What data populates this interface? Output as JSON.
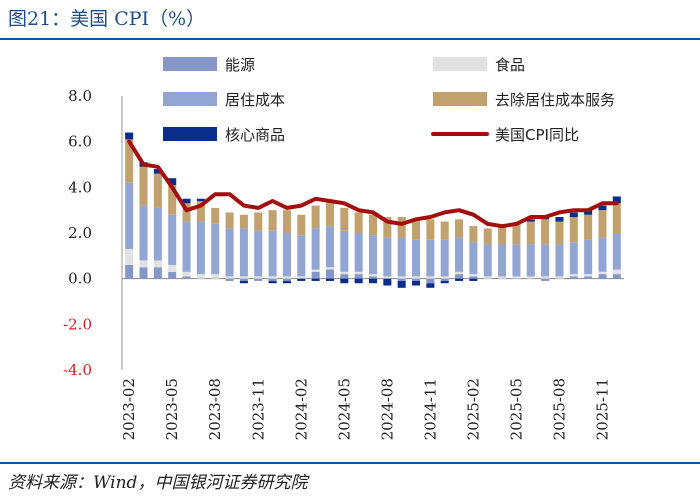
{
  "header": {
    "title": "图21：美国 CPI（%）"
  },
  "footer": {
    "source": "资料来源：Wind，中国银河证券研究院"
  },
  "chart_data": {
    "type": "bar",
    "title": "图21：美国 CPI（%）",
    "xlabel": "",
    "ylabel": "",
    "ylim": [
      -4.0,
      8.0
    ],
    "yticks": [
      8.0,
      6.0,
      4.0,
      2.0,
      0.0,
      -2.0,
      -4.0
    ],
    "ytick_labels": [
      "8.0",
      "6.0",
      "4.0",
      "2.0",
      "0.0",
      "-2.0",
      "-4.0"
    ],
    "categories": [
      "2023-02",
      "2023-03",
      "2023-04",
      "2023-05",
      "2023-06",
      "2023-07",
      "2023-08",
      "2023-09",
      "2023-10",
      "2023-11",
      "2023-12",
      "2024-01",
      "2024-02",
      "2024-03",
      "2024-04",
      "2024-05",
      "2024-06",
      "2024-07",
      "2024-08",
      "2024-09",
      "2024-10",
      "2024-11",
      "2024-12",
      "2025-01",
      "2025-02",
      "2025-03",
      "2025-04",
      "2025-05",
      "2025-06",
      "2025-07",
      "2025-08",
      "2025-09",
      "2025-10",
      "2025-11",
      "2025-12"
    ],
    "xtick_labels": [
      "2023-02",
      "2023-05",
      "2023-08",
      "2023-11",
      "2024-02",
      "2024-05",
      "2024-08",
      "2024-11",
      "2025-02",
      "2025-05",
      "2025-08",
      "2025-11"
    ],
    "legend_position": "top",
    "series": [
      {
        "name": "能源",
        "kind": "bar",
        "color": "#8497c7",
        "values": [
          0.6,
          0.5,
          0.5,
          0.3,
          0.1,
          0.0,
          0.0,
          -0.1,
          -0.1,
          -0.1,
          -0.1,
          -0.1,
          0.0,
          0.3,
          0.4,
          0.2,
          0.2,
          0.1,
          0.0,
          -0.1,
          -0.1,
          -0.2,
          -0.1,
          0.2,
          0.1,
          0.0,
          0.0,
          0.0,
          0.0,
          -0.1,
          0.0,
          0.1,
          0.1,
          0.2,
          0.2
        ]
      },
      {
        "name": "食品",
        "kind": "bar",
        "color": "#e1e1e1",
        "values": [
          0.7,
          0.3,
          0.3,
          0.3,
          0.2,
          0.2,
          0.2,
          0.1,
          0.1,
          0.1,
          0.1,
          0.1,
          0.1,
          0.1,
          0.1,
          0.1,
          0.1,
          0.1,
          0.1,
          0.1,
          0.1,
          0.1,
          0.1,
          0.1,
          0.1,
          0.1,
          0.1,
          0.1,
          0.1,
          0.1,
          0.1,
          0.1,
          0.1,
          0.1,
          0.2
        ]
      },
      {
        "name": "居住成本",
        "kind": "bar",
        "color": "#93a5d3",
        "values": [
          2.9,
          2.4,
          2.3,
          2.2,
          2.2,
          2.3,
          2.2,
          2.1,
          2.1,
          2.0,
          2.0,
          1.9,
          1.8,
          1.8,
          1.8,
          1.8,
          1.7,
          1.7,
          1.7,
          1.7,
          1.6,
          1.6,
          1.6,
          1.5,
          1.4,
          1.4,
          1.4,
          1.4,
          1.4,
          1.4,
          1.4,
          1.4,
          1.5,
          1.5,
          1.6
        ]
      },
      {
        "name": "去除居住成本服务",
        "kind": "bar",
        "color": "#c1a16e",
        "values": [
          1.9,
          1.7,
          1.5,
          1.3,
          0.8,
          0.9,
          0.7,
          0.7,
          0.6,
          0.8,
          0.9,
          1.0,
          0.9,
          1.0,
          1.1,
          1.0,
          0.9,
          0.9,
          0.9,
          0.9,
          0.9,
          0.9,
          0.8,
          0.8,
          0.7,
          0.7,
          0.8,
          0.9,
          1.0,
          1.1,
          1.0,
          1.1,
          1.1,
          1.2,
          1.3
        ]
      },
      {
        "name": "核心商品",
        "kind": "bar",
        "color": "#0a2c8a",
        "values": [
          0.3,
          0.2,
          0.2,
          0.3,
          0.2,
          0.1,
          0.0,
          0.0,
          -0.1,
          0.0,
          -0.1,
          -0.1,
          -0.1,
          -0.1,
          -0.1,
          -0.2,
          -0.2,
          -0.2,
          -0.3,
          -0.3,
          -0.2,
          -0.2,
          -0.1,
          -0.1,
          -0.1,
          0.0,
          0.0,
          0.0,
          0.1,
          0.1,
          0.2,
          0.2,
          0.2,
          0.2,
          0.3
        ]
      },
      {
        "name": "美国CPI同比",
        "kind": "line",
        "color": "#a50e0e",
        "values": [
          6.0,
          5.0,
          4.9,
          4.0,
          3.0,
          3.2,
          3.7,
          3.7,
          3.2,
          3.1,
          3.4,
          3.1,
          3.2,
          3.5,
          3.4,
          3.3,
          3.0,
          2.9,
          2.5,
          2.4,
          2.6,
          2.7,
          2.9,
          3.0,
          2.8,
          2.4,
          2.3,
          2.4,
          2.7,
          2.7,
          2.9,
          3.0,
          3.0,
          3.3,
          3.3
        ]
      }
    ]
  }
}
